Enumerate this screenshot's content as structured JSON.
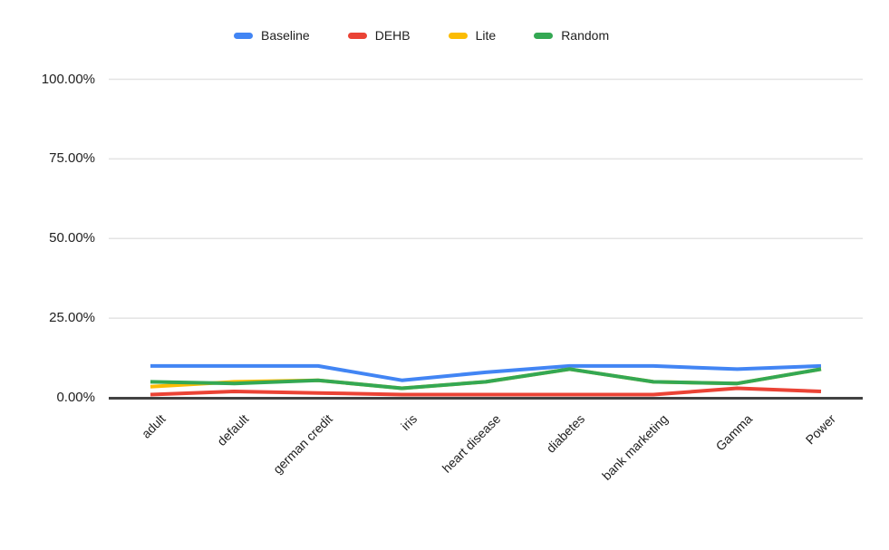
{
  "chart_data": {
    "type": "line",
    "title": "",
    "categories": [
      "adult",
      "default",
      "german credit",
      "iris",
      "heart disease",
      "diabetes",
      "bank marketing",
      "Gamma",
      "Power"
    ],
    "series": [
      {
        "name": "Baseline",
        "color": "#4285F4",
        "values": [
          10,
          10,
          10,
          5.5,
          8,
          10,
          10,
          9,
          10
        ]
      },
      {
        "name": "DEHB",
        "color": "#EA4335",
        "values": [
          1,
          2,
          1.5,
          1,
          1,
          1,
          1,
          3,
          2
        ]
      },
      {
        "name": "Lite",
        "color": "#FBBC04",
        "values": [
          3.5,
          5,
          5.5,
          3,
          5,
          9,
          5,
          4.5,
          9
        ]
      },
      {
        "name": "Random",
        "color": "#34A853",
        "values": [
          5,
          4.5,
          5.5,
          3,
          5,
          9,
          5,
          4.5,
          9
        ]
      }
    ],
    "yticks": {
      "labels": [
        "0.00%",
        "25.00%",
        "50.00%",
        "75.00%",
        "100.00%"
      ],
      "values": [
        0,
        25,
        50,
        75,
        100
      ]
    },
    "ylim": [
      0,
      100
    ],
    "grid": true,
    "legend_position": "top",
    "colors": {
      "grid_line": "#e3e3e3",
      "axis_line": "#424242",
      "label_text": "#1f1f1f",
      "background": "#ffffff"
    }
  }
}
